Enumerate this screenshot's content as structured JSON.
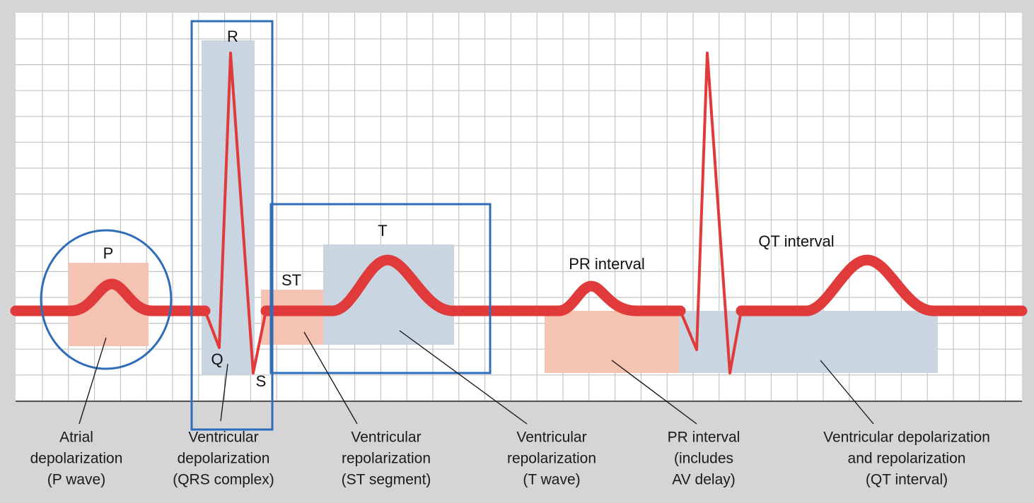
{
  "wave_labels": {
    "r": "R",
    "p": "P",
    "q": "Q",
    "s": "S",
    "st": "ST",
    "t": "T",
    "pr": "PR interval",
    "qt": "QT interval"
  },
  "captions": [
    [
      "Atrial",
      "depolarization",
      "(P wave)"
    ],
    [
      "Ventricular",
      "depolarization",
      "(QRS complex)"
    ],
    [
      "Ventricular",
      "repolarization",
      "(ST segment)"
    ],
    [
      "Ventricular",
      "repolarization",
      "(T wave)"
    ],
    [
      "PR interval",
      "(includes",
      "AV delay)"
    ],
    [
      "Ventricular depolarization",
      "and repolarization",
      "(QT interval)"
    ]
  ]
}
